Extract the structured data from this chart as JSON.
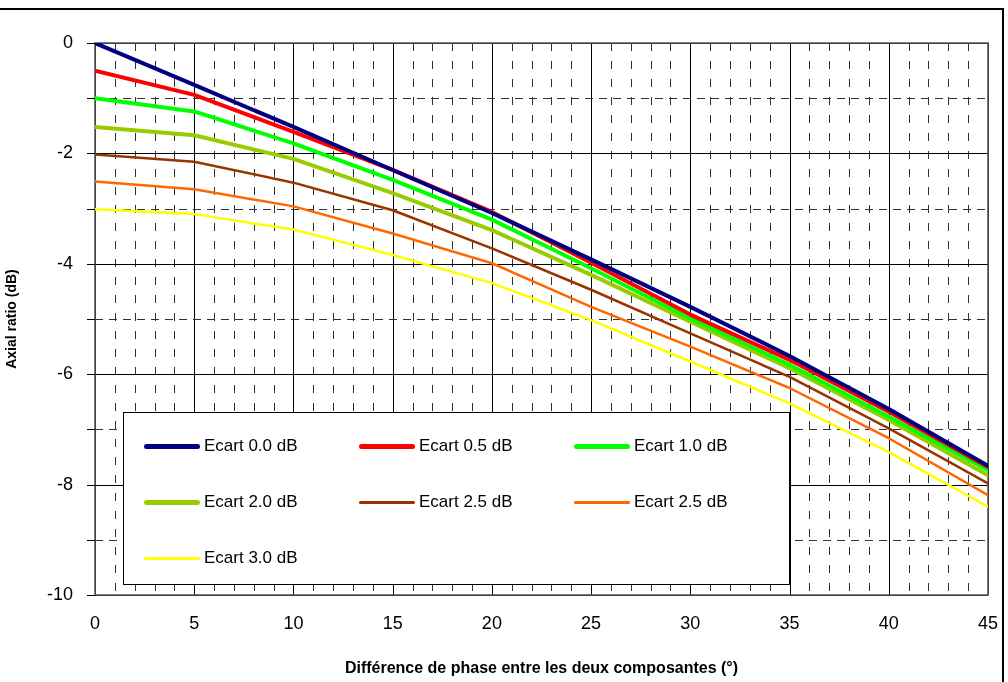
{
  "chart_data": {
    "type": "line",
    "xlabel": "Différence de phase entre les deux composantes (°)",
    "ylabel": "Axial ratio (dB)",
    "x": [
      0,
      5,
      10,
      15,
      20,
      25,
      30,
      35,
      40,
      45
    ],
    "series": [
      {
        "name": "Ecart 0.0 dB",
        "color": "#000080",
        "values": [
          0,
          -0.76,
          -1.52,
          -2.3,
          -3.08,
          -3.92,
          -4.78,
          -5.67,
          -6.63,
          -7.66
        ]
      },
      {
        "name": "Ecart 0.5 dB",
        "color": "#ff0000",
        "values": [
          -0.5,
          -0.94,
          -1.61,
          -2.3,
          -3.06,
          -3.98,
          -4.92,
          -5.74,
          -6.68,
          -7.68
        ]
      },
      {
        "name": "Ecart 1.0 dB",
        "color": "#00ff00",
        "values": [
          -1.0,
          -1.24,
          -1.82,
          -2.48,
          -3.2,
          -4.08,
          -4.99,
          -5.83,
          -6.77,
          -7.74
        ]
      },
      {
        "name": "Ecart 2.0 dB",
        "color": "#99cc00",
        "values": [
          -1.52,
          -1.67,
          -2.1,
          -2.72,
          -3.39,
          -4.2,
          -5.05,
          -5.89,
          -6.83,
          -7.83
        ]
      },
      {
        "name": "Ecart 2.5 dB",
        "color": "#993300",
        "values": [
          -2.02,
          -2.15,
          -2.53,
          -3.03,
          -3.72,
          -4.47,
          -5.26,
          -6.05,
          -6.98,
          -7.98
        ]
      },
      {
        "name": "Ecart 2.5 dB",
        "color": "#ff6600",
        "values": [
          -2.51,
          -2.65,
          -2.96,
          -3.45,
          -3.99,
          -4.78,
          -5.5,
          -6.25,
          -7.16,
          -8.19
        ]
      },
      {
        "name": "Ecart 3.0 dB",
        "color": "#ffff00",
        "values": [
          -3.01,
          -3.1,
          -3.38,
          -3.84,
          -4.35,
          -5.02,
          -5.77,
          -6.53,
          -7.41,
          -8.4
        ]
      }
    ],
    "xlim": [
      0,
      45
    ],
    "xticks": [
      0,
      {
        "value": 1,
        "label": null
      },
      {
        "value": 2,
        "label": null
      },
      {
        "value": 3,
        "label": null
      },
      {
        "value": 4,
        "label": null
      },
      5,
      {
        "value": 6,
        "label": null
      },
      {
        "value": 7,
        "label": null
      },
      {
        "value": 8,
        "label": null
      },
      {
        "value": 9,
        "label": null
      },
      10,
      {
        "value": 11,
        "label": null
      },
      {
        "value": 12,
        "label": null
      },
      {
        "value": 13,
        "label": null
      },
      {
        "value": 14,
        "label": null
      },
      15,
      {
        "value": 16,
        "label": null
      },
      {
        "value": 17,
        "label": null
      },
      {
        "value": 18,
        "label": null
      },
      {
        "value": 19,
        "label": null
      },
      20,
      {
        "value": 21,
        "label": null
      },
      {
        "value": 22,
        "label": null
      },
      {
        "value": 23,
        "label": null
      },
      {
        "value": 24,
        "label": null
      },
      25,
      {
        "value": 26,
        "label": null
      },
      {
        "value": 27,
        "label": null
      },
      {
        "value": 28,
        "label": null
      },
      {
        "value": 29,
        "label": null
      },
      30,
      {
        "value": 31,
        "label": null
      },
      {
        "value": 32,
        "label": null
      },
      {
        "value": 33,
        "label": null
      },
      {
        "value": 34,
        "label": null
      },
      35,
      {
        "value": 36,
        "label": null
      },
      {
        "value": 37,
        "label": null
      },
      {
        "value": 38,
        "label": null
      },
      {
        "value": 39,
        "label": null
      },
      40,
      {
        "value": 41,
        "label": null
      },
      {
        "value": 42,
        "label": null
      },
      {
        "value": 43,
        "label": null
      },
      {
        "value": 44,
        "label": null
      },
      45
    ],
    "ylim": [
      -10,
      0
    ],
    "yticks": [
      0,
      {
        "value": -1,
        "label": null
      },
      -2,
      {
        "value": -3,
        "label": null
      },
      -4,
      {
        "value": -5,
        "label": null
      },
      -6,
      {
        "value": -7,
        "label": null
      },
      -8,
      {
        "value": -9,
        "label": null
      },
      -10
    ],
    "grid": true,
    "legend": "bottom left",
    "marker": "none",
    "line_style": "solid"
  }
}
